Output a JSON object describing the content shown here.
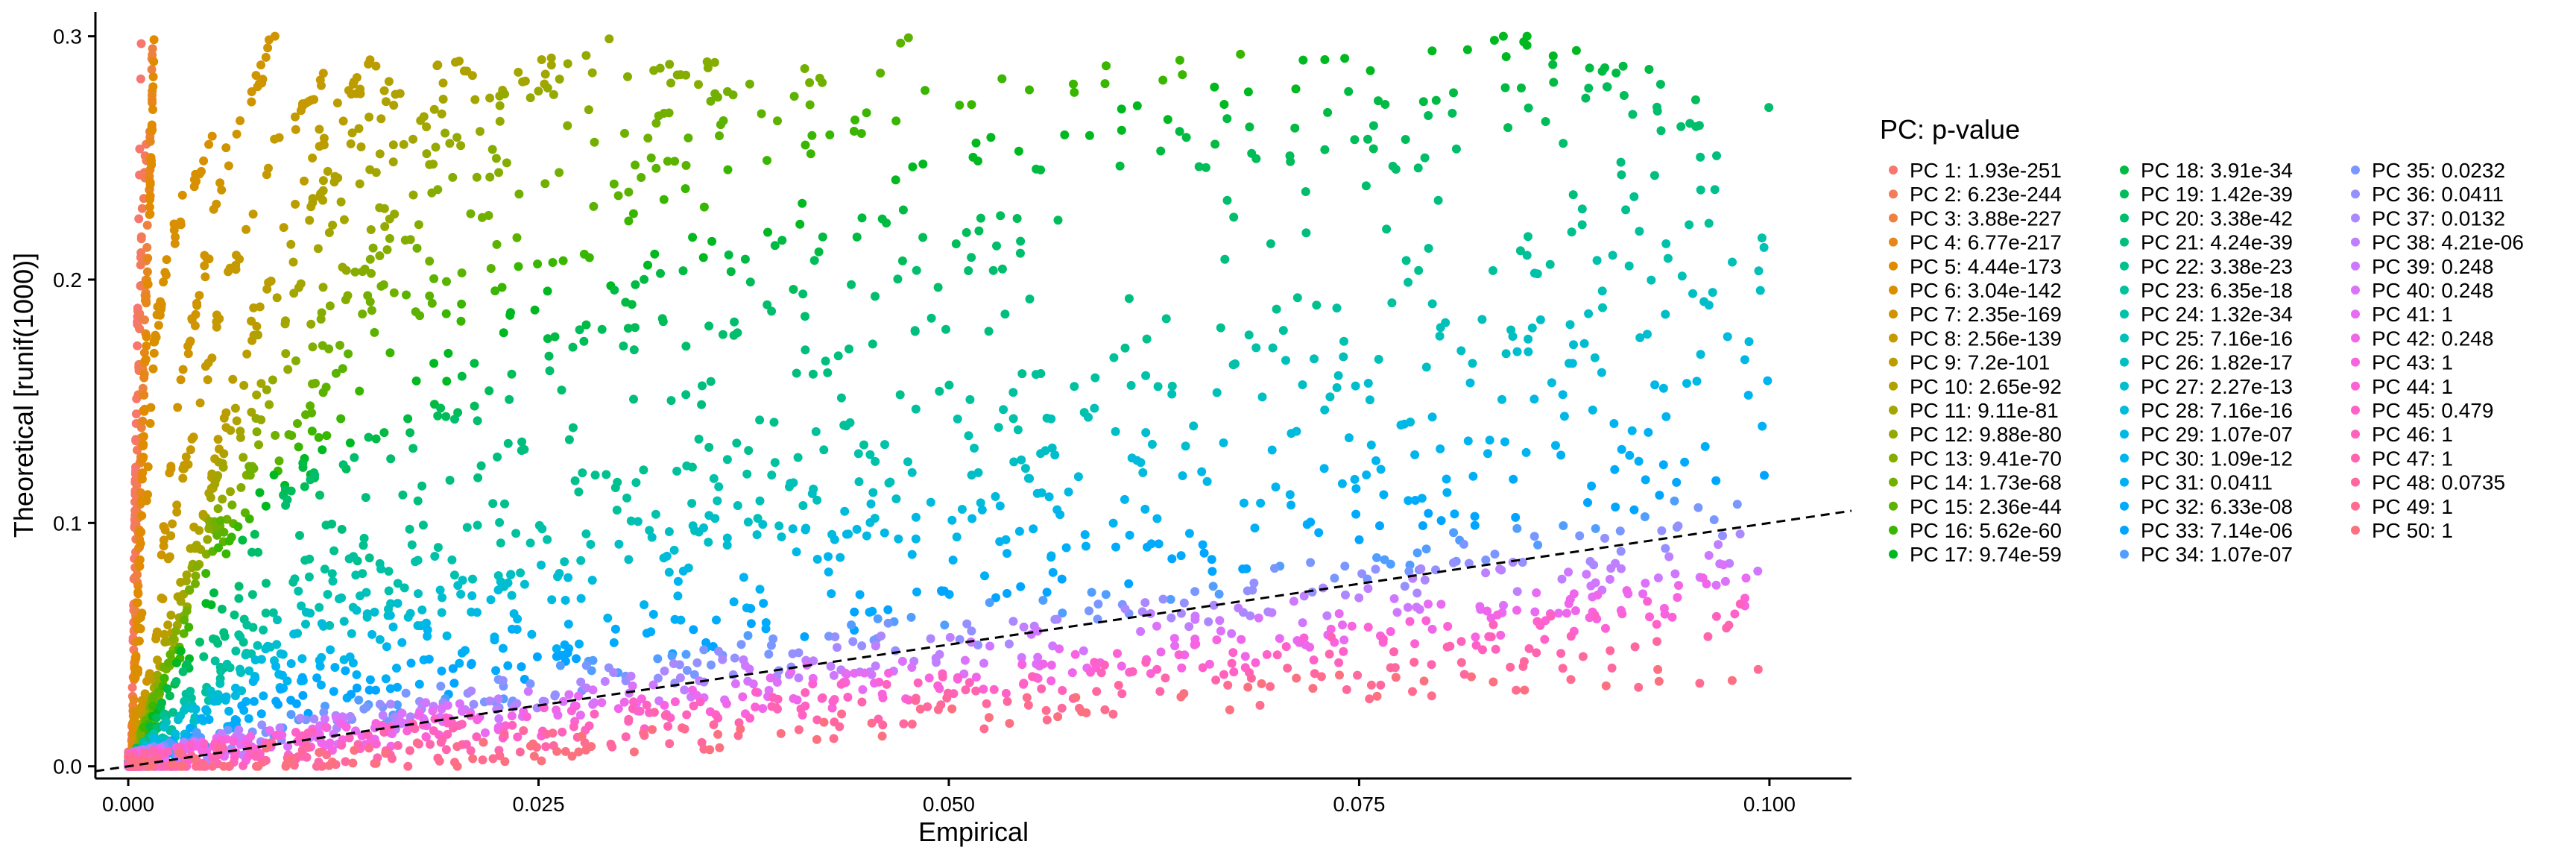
{
  "chart_data": {
    "type": "scatter",
    "title": "",
    "xlabel": "Empirical",
    "ylabel": "Theoretical [runif(1000)]",
    "xlim": [
      -0.002,
      0.105
    ],
    "ylim": [
      -0.005,
      0.31
    ],
    "x_ticks": [
      0.0,
      0.025,
      0.05,
      0.075,
      0.1
    ],
    "x_tick_labels": [
      "0.000",
      "0.025",
      "0.050",
      "0.075",
      "0.100"
    ],
    "y_ticks": [
      0.0,
      0.1,
      0.2,
      0.3
    ],
    "y_tick_labels": [
      "0.0",
      "0.1",
      "0.2",
      "0.3"
    ],
    "reference_line": {
      "slope": 1,
      "intercept": 0,
      "style": "dashed"
    },
    "grid": false,
    "legend": {
      "title": "PC: p-value",
      "placement": "right",
      "columns": 3,
      "entries": [
        "PC 1: 1.93e-251",
        "PC 2: 6.23e-244",
        "PC 3: 3.88e-227",
        "PC 4: 6.77e-217",
        "PC 5: 4.44e-173",
        "PC 6: 3.04e-142",
        "PC 7: 2.35e-169",
        "PC 8: 2.56e-139",
        "PC 9: 7.2e-101",
        "PC 10: 2.65e-92",
        "PC 11: 9.11e-81",
        "PC 12: 9.88e-80",
        "PC 13: 9.41e-70",
        "PC 14: 1.73e-68",
        "PC 15: 2.36e-44",
        "PC 16: 5.62e-60",
        "PC 17: 9.74e-59",
        "PC 18: 3.91e-34",
        "PC 19: 1.42e-39",
        "PC 20: 3.38e-42",
        "PC 21: 4.24e-39",
        "PC 22: 3.38e-23",
        "PC 23: 6.35e-18",
        "PC 24: 1.32e-34",
        "PC 25: 7.16e-16",
        "PC 26: 1.82e-17",
        "PC 27: 2.27e-13",
        "PC 28: 7.16e-16",
        "PC 29: 1.07e-07",
        "PC 30: 1.09e-12",
        "PC 31: 0.0411",
        "PC 32: 6.33e-08",
        "PC 33: 7.14e-06",
        "PC 34: 1.07e-07",
        "PC 35: 0.0232",
        "PC 36: 0.0411",
        "PC 37: 0.0132",
        "PC 38: 4.21e-06",
        "PC 39: 0.248",
        "PC 40: 0.248",
        "PC 41: 1",
        "PC 42: 0.248",
        "PC 43: 1",
        "PC 44: 1",
        "PC 45: 0.479",
        "PC 46: 1",
        "PC 47: 1",
        "PC 48: 0.0735",
        "PC 49: 1",
        "PC 50: 1"
      ]
    },
    "series_curves": [
      {
        "pc": 1,
        "points": [
          [
            0.0002,
            0.0
          ],
          [
            0.0008,
            0.3
          ]
        ]
      },
      {
        "pc": 3,
        "points": [
          [
            0.0002,
            0.0
          ],
          [
            0.0015,
            0.3
          ]
        ]
      },
      {
        "pc": 5,
        "points": [
          [
            0.0002,
            0.0
          ],
          [
            0.0008,
            0.1
          ],
          [
            0.0012,
            0.2
          ],
          [
            0.0016,
            0.3
          ]
        ]
      },
      {
        "pc": 7,
        "points": [
          [
            0.0003,
            0.0
          ],
          [
            0.0015,
            0.05
          ],
          [
            0.003,
            0.15
          ],
          [
            0.006,
            0.25
          ],
          [
            0.009,
            0.3
          ]
        ]
      },
      {
        "pc": 9,
        "points": [
          [
            0.0003,
            0.0
          ],
          [
            0.003,
            0.07
          ],
          [
            0.007,
            0.17
          ],
          [
            0.011,
            0.25
          ],
          [
            0.016,
            0.3
          ]
        ]
      },
      {
        "pc": 12,
        "points": [
          [
            0.0003,
            0.0
          ],
          [
            0.005,
            0.1
          ],
          [
            0.012,
            0.2
          ],
          [
            0.02,
            0.26
          ],
          [
            0.031,
            0.3
          ]
        ]
      },
      {
        "pc": 15,
        "points": [
          [
            0.0003,
            0.0
          ],
          [
            0.005,
            0.09
          ],
          [
            0.015,
            0.18
          ],
          [
            0.03,
            0.24
          ],
          [
            0.049,
            0.3
          ]
        ]
      },
      {
        "pc": 17,
        "points": [
          [
            0.0003,
            0.0
          ],
          [
            0.008,
            0.11
          ],
          [
            0.025,
            0.19
          ],
          [
            0.05,
            0.25
          ],
          [
            0.075,
            0.29
          ],
          [
            0.09,
            0.3
          ]
        ]
      },
      {
        "pc": 20,
        "points": [
          [
            0.0003,
            0.0
          ],
          [
            0.01,
            0.11
          ],
          [
            0.03,
            0.17
          ],
          [
            0.06,
            0.22
          ],
          [
            0.1,
            0.275
          ]
        ]
      },
      {
        "pc": 22,
        "points": [
          [
            0.0003,
            0.0
          ],
          [
            0.01,
            0.08
          ],
          [
            0.04,
            0.14
          ],
          [
            0.07,
            0.19
          ],
          [
            0.1,
            0.245
          ]
        ]
      },
      {
        "pc": 25,
        "points": [
          [
            0.0003,
            0.0
          ],
          [
            0.01,
            0.06
          ],
          [
            0.04,
            0.11
          ],
          [
            0.07,
            0.16
          ],
          [
            0.1,
            0.21
          ]
        ]
      },
      {
        "pc": 28,
        "points": [
          [
            0.0003,
            0.0
          ],
          [
            0.01,
            0.05
          ],
          [
            0.04,
            0.095
          ],
          [
            0.07,
            0.135
          ],
          [
            0.1,
            0.18
          ]
        ]
      },
      {
        "pc": 31,
        "points": [
          [
            0.0003,
            0.0
          ],
          [
            0.01,
            0.035
          ],
          [
            0.04,
            0.07
          ],
          [
            0.07,
            0.105
          ],
          [
            0.1,
            0.14
          ]
        ]
      },
      {
        "pc": 34,
        "points": [
          [
            0.0003,
            0.0
          ],
          [
            0.01,
            0.02
          ],
          [
            0.04,
            0.05
          ],
          [
            0.07,
            0.08
          ],
          [
            0.1,
            0.11
          ]
        ]
      },
      {
        "pc": 38,
        "points": [
          [
            0.0003,
            0.0
          ],
          [
            0.01,
            0.015
          ],
          [
            0.04,
            0.04
          ],
          [
            0.07,
            0.065
          ],
          [
            0.1,
            0.09
          ]
        ]
      },
      {
        "pc": 42,
        "points": [
          [
            0.0003,
            0.0
          ],
          [
            0.01,
            0.01
          ],
          [
            0.04,
            0.03
          ],
          [
            0.07,
            0.05
          ],
          [
            0.1,
            0.075
          ]
        ]
      },
      {
        "pc": 46,
        "points": [
          [
            0.0003,
            0.0
          ],
          [
            0.01,
            0.008
          ],
          [
            0.04,
            0.025
          ],
          [
            0.07,
            0.045
          ],
          [
            0.1,
            0.065
          ]
        ]
      },
      {
        "pc": 49,
        "points": [
          [
            0.0003,
            0.0
          ],
          [
            0.02,
            0.005
          ],
          [
            0.05,
            0.02
          ],
          [
            0.08,
            0.035
          ],
          [
            0.1,
            0.04
          ]
        ]
      }
    ],
    "colors": {
      "axis": "#000000",
      "reference_line": "#000000",
      "series_hue_start": 15,
      "series_hue_end": 375,
      "series_chroma": 100,
      "series_luminance": 65
    }
  }
}
